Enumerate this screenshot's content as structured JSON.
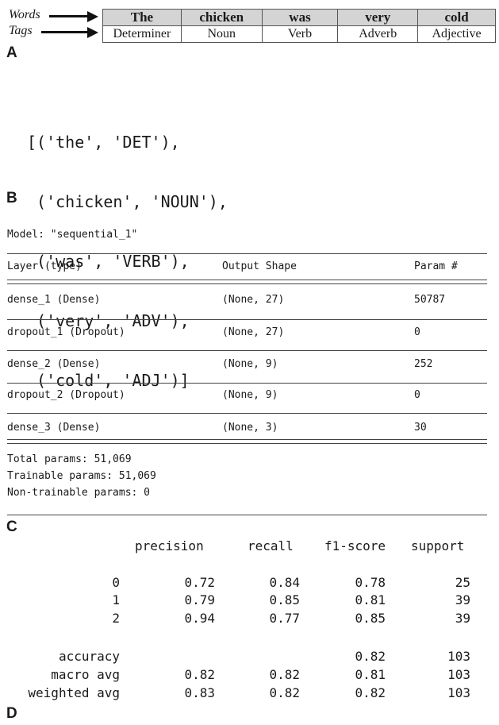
{
  "panel_a": {
    "letter": "A",
    "words_label": "Words",
    "tags_label": "Tags",
    "words": [
      "The",
      "chicken",
      "was",
      "very",
      "cold"
    ],
    "tags": [
      "Determiner",
      "Noun",
      "Verb",
      "Adverb",
      "Adjective"
    ]
  },
  "panel_b": {
    "letter": "B",
    "lines": [
      "[('the', 'DET'),",
      " ('chicken', 'NOUN'),",
      " ('was', 'VERB'),",
      " ('very', 'ADV'),",
      " ('cold', 'ADJ')]"
    ]
  },
  "panel_c": {
    "letter": "C",
    "model_line": "Model: \"sequential_1\"",
    "headers": [
      "Layer (type)",
      "Output Shape",
      "Param #"
    ],
    "rows": [
      [
        "dense_1 (Dense)",
        "(None, 27)",
        "50787"
      ],
      [
        "dropout_1 (Dropout)",
        "(None, 27)",
        "0"
      ],
      [
        "dense_2 (Dense)",
        "(None, 9)",
        "252"
      ],
      [
        "dropout_2 (Dropout)",
        "(None, 9)",
        "0"
      ],
      [
        "dense_3 (Dense)",
        "(None, 3)",
        "30"
      ]
    ],
    "total": "Total params: 51,069",
    "trainable": "Trainable params: 51,069",
    "non_trainable": "Non-trainable params: 0"
  },
  "panel_d": {
    "letter": "D",
    "headers": [
      "precision",
      "recall",
      "f1-score",
      "support"
    ],
    "class_rows": [
      [
        "0",
        "0.72",
        "0.84",
        "0.78",
        "25"
      ],
      [
        "1",
        "0.79",
        "0.85",
        "0.81",
        "39"
      ],
      [
        "2",
        "0.94",
        "0.77",
        "0.85",
        "39"
      ]
    ],
    "summary_rows": [
      [
        "accuracy",
        "",
        "",
        "0.82",
        "103"
      ],
      [
        "macro avg",
        "0.82",
        "0.82",
        "0.81",
        "103"
      ],
      [
        "weighted avg",
        "0.83",
        "0.82",
        "0.82",
        "103"
      ]
    ]
  }
}
